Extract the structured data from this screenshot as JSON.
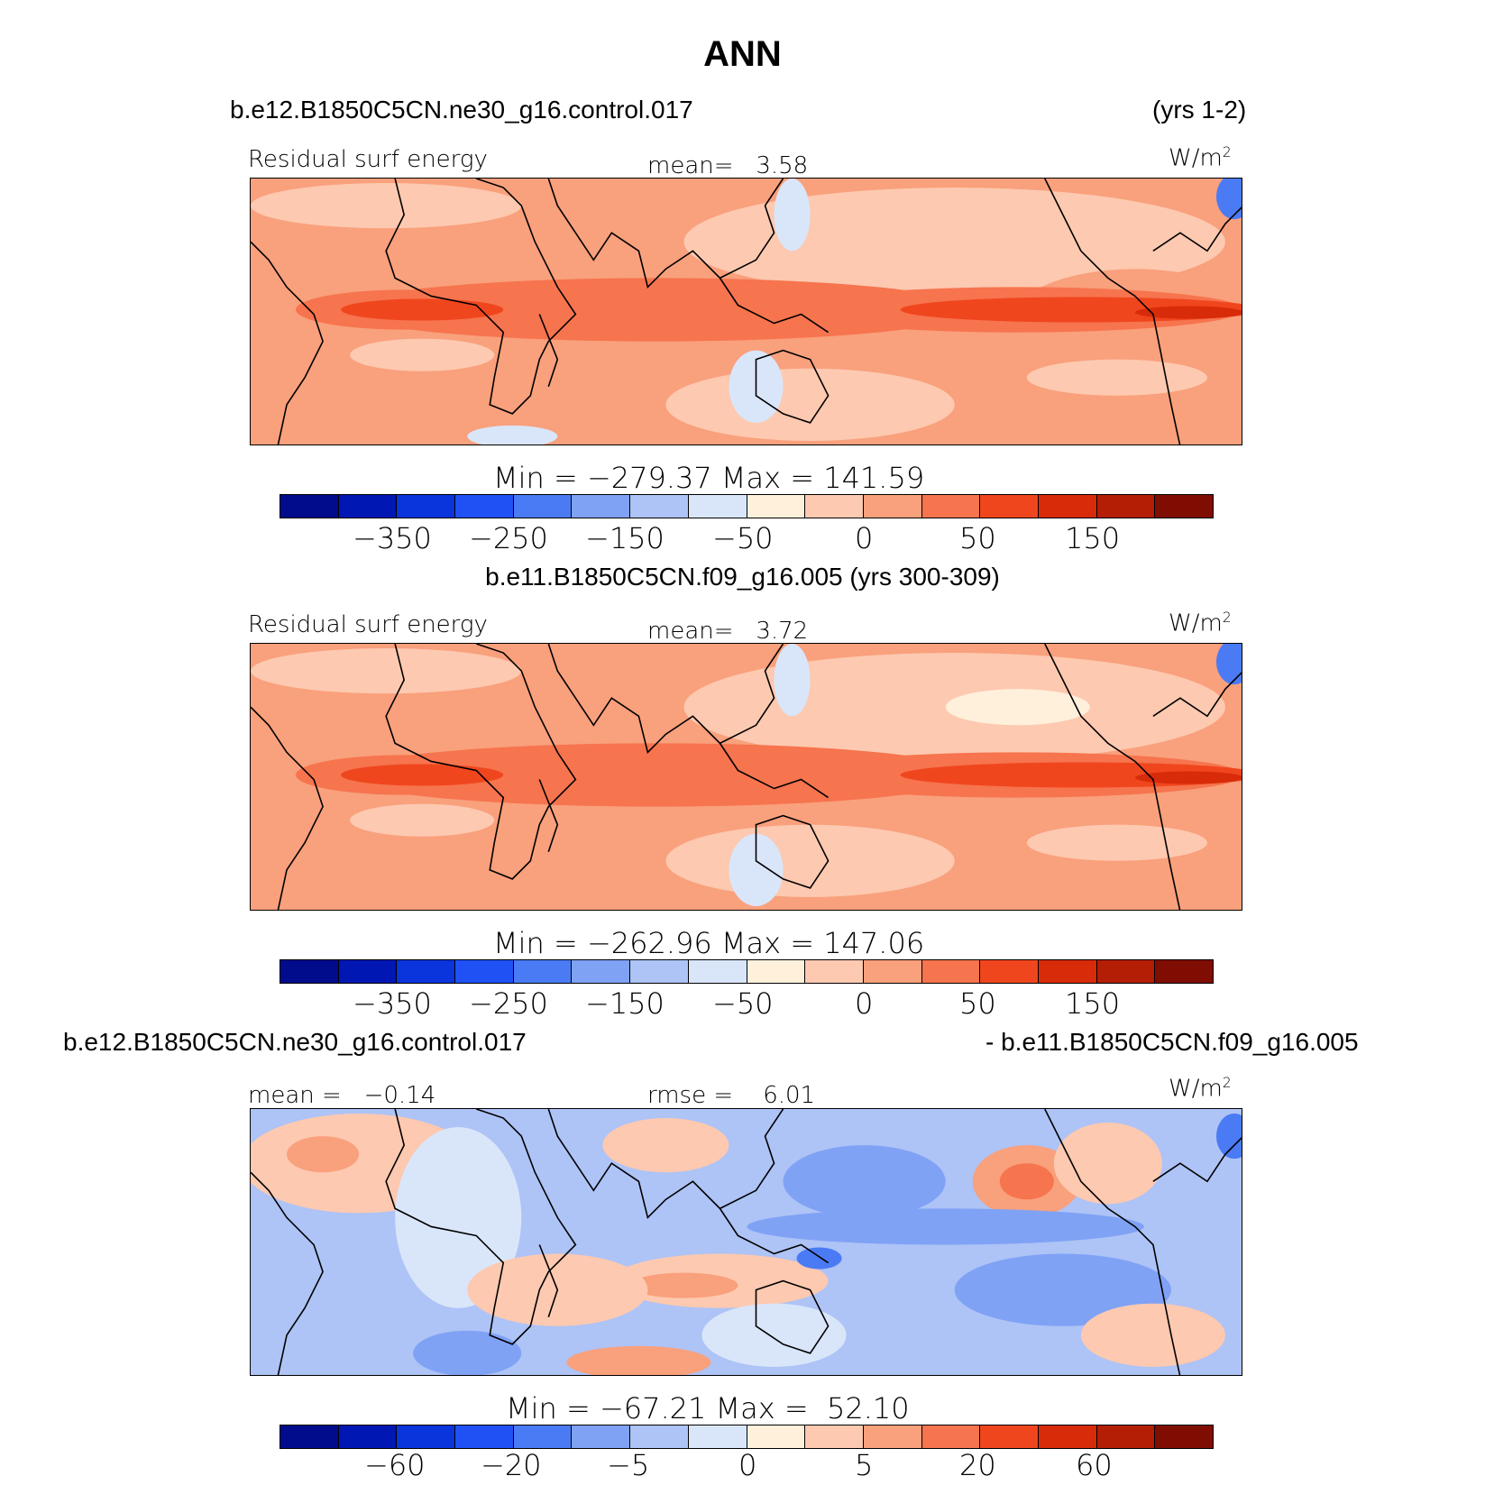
{
  "title": "ANN",
  "colors": {
    "scale": [
      "#000c8b",
      "#0017b3",
      "#0a34dc",
      "#2051f5",
      "#4a7bf4",
      "#7fa2f5",
      "#aec3f6",
      "#d9e6fa",
      "#fff0dc",
      "#fdc9b0",
      "#f9a07c",
      "#f6744e",
      "#f0461e",
      "#d72b0a",
      "#b31e04",
      "#800d02"
    ]
  },
  "panels": [
    {
      "case_left": "b.e12.B1850C5CN.ne30_g16.control.017",
      "case_right": "(yrs 1-2)",
      "label_left": "Residual surf energy",
      "label_mid": "mean=   3.58",
      "units": "W/m",
      "units_sup": "2",
      "minmax": "Min = −279.37 Max = 141.59",
      "ticks": [
        "−350",
        "−250",
        "−150",
        "−50",
        "0",
        "50",
        "150"
      ]
    },
    {
      "case_center": "b.e11.B1850C5CN.f09_g16.005 (yrs 300-309)",
      "label_left": "Residual surf energy",
      "label_mid": "mean=   3.72",
      "units": "W/m",
      "units_sup": "2",
      "minmax": "Min = −262.96 Max = 147.06",
      "ticks": [
        "−350",
        "−250",
        "−150",
        "−50",
        "0",
        "50",
        "150"
      ]
    },
    {
      "case_left": "b.e12.B1850C5CN.ne30_g16.control.017",
      "case_right": "- b.e11.B1850C5CN.f09_g16.005",
      "label_left": "mean =   −0.14",
      "label_mid": "rmse =    6.01",
      "units": "W/m",
      "units_sup": "2",
      "minmax": "Min = −67.21 Max =  52.10",
      "ticks": [
        "−60",
        "−20",
        "−5",
        "0",
        "5",
        "20",
        "60"
      ]
    }
  ]
}
